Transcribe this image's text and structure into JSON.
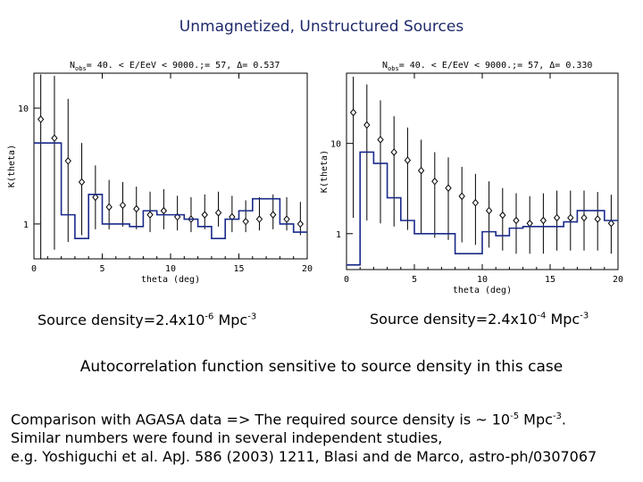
{
  "slide": {
    "title": "Unmagnetized, Unstructured Sources",
    "caption_left": {
      "pre": "Source density=2.4x10",
      "exp1": "-6",
      "mid": " Mpc",
      "exp2": "-3"
    },
    "caption_right": {
      "pre": "Source density=2.4x10",
      "exp1": "-4",
      "mid": " Mpc",
      "exp2": "-3"
    },
    "statement": "Autocorrelation function sensitive to source density in this case",
    "comparison": {
      "line1_pre": "Comparison with AGASA data => The required source density is ~ 10",
      "line1_exp1": "-5",
      "line1_mid": " Mpc",
      "line1_exp2": "-3",
      "line1_post": ".",
      "line2": "Similar numbers were found in several independent studies,",
      "line3": "e.g. Yoshiguchi et al. ApJ. 586 (2003) 1211, Blasi and de Marco, astro-ph/0307067"
    }
  },
  "colors": {
    "title": "#1f2a6b",
    "hist": "#1a2a8a",
    "ink": "#000000"
  },
  "chart_data": [
    {
      "type": "scatter",
      "title_pre": "N",
      "title_sub": "obs",
      "title_post": "= 40. < E/EeV < 9000.;= 57, Δ= 0.537",
      "xlabel": "theta (deg)",
      "ylabel": "K(theta)",
      "xlim": [
        0,
        20
      ],
      "ylim": [
        0.5,
        20
      ],
      "yscale": "log",
      "xticks": [
        0,
        5,
        10,
        15,
        20
      ],
      "yticks": [
        {
          "v": 1,
          "label": "1"
        },
        {
          "v": 10,
          "label": "10"
        }
      ],
      "grid": false,
      "series": [
        {
          "kind": "points_with_errors",
          "x": [
            0.5,
            1.5,
            2.5,
            3.5,
            4.5,
            5.5,
            6.5,
            7.5,
            8.5,
            9.5,
            10.5,
            11.5,
            12.5,
            13.5,
            14.5,
            15.5,
            16.5,
            17.5,
            18.5,
            19.5
          ],
          "y": [
            8.0,
            5.5,
            3.5,
            2.3,
            1.7,
            1.4,
            1.45,
            1.35,
            1.2,
            1.3,
            1.15,
            1.1,
            1.2,
            1.25,
            1.15,
            1.05,
            1.1,
            1.2,
            1.1,
            1.0
          ],
          "ylow": [
            0.5,
            0.6,
            0.7,
            0.8,
            0.9,
            0.9,
            0.95,
            0.9,
            0.85,
            0.9,
            0.88,
            0.85,
            0.9,
            0.95,
            0.85,
            0.85,
            0.88,
            0.9,
            0.88,
            0.8
          ],
          "yhigh": [
            19.5,
            19,
            12,
            5,
            3.2,
            2.4,
            2.3,
            2.1,
            1.9,
            2.0,
            1.75,
            1.7,
            1.8,
            1.9,
            1.75,
            1.6,
            1.7,
            1.8,
            1.7,
            1.55
          ]
        },
        {
          "kind": "step",
          "x": [
            0.5,
            1.5,
            2.5,
            3.5,
            4.5,
            5.5,
            6.5,
            7.5,
            8.5,
            9.5,
            10.5,
            11.5,
            12.5,
            13.5,
            14.5,
            15.5,
            16.5,
            17.5,
            18.5,
            19.5
          ],
          "y": [
            5.0,
            5.0,
            1.2,
            0.75,
            1.8,
            1.0,
            1.0,
            0.95,
            1.3,
            1.2,
            1.2,
            1.1,
            0.95,
            0.75,
            1.1,
            1.3,
            1.65,
            1.65,
            1.0,
            0.85
          ]
        }
      ]
    },
    {
      "type": "scatter",
      "title_pre": "N",
      "title_sub": "obs",
      "title_post": "= 40. < E/EeV < 9000.;= 57, Δ= 0.330",
      "xlabel": "theta (deg)",
      "ylabel": "K(theta)",
      "xlim": [
        0,
        20
      ],
      "ylim": [
        0.4,
        60
      ],
      "yscale": "log",
      "xticks": [
        0,
        5,
        10,
        15,
        20
      ],
      "yticks": [
        {
          "v": 1,
          "label": "1"
        },
        {
          "v": 10,
          "label": "10"
        }
      ],
      "grid": false,
      "series": [
        {
          "kind": "points_with_errors",
          "x": [
            0.5,
            1.5,
            2.5,
            3.5,
            4.5,
            5.5,
            6.5,
            7.5,
            8.5,
            9.5,
            10.5,
            11.5,
            12.5,
            13.5,
            14.5,
            15.5,
            16.5,
            17.5,
            18.5,
            19.5
          ],
          "y": [
            22,
            16,
            11,
            8,
            6.5,
            5.0,
            3.8,
            3.2,
            2.6,
            2.2,
            1.8,
            1.6,
            1.4,
            1.3,
            1.4,
            1.5,
            1.5,
            1.5,
            1.45,
            1.3
          ],
          "ylow": [
            1.5,
            1.4,
            1.3,
            1.2,
            1.1,
            1.0,
            0.9,
            0.85,
            0.8,
            0.75,
            0.7,
            0.65,
            0.6,
            0.6,
            0.6,
            0.65,
            0.65,
            0.65,
            0.65,
            0.6
          ],
          "yhigh": [
            55,
            45,
            30,
            20,
            15,
            11,
            8,
            7,
            5.5,
            4.6,
            3.8,
            3.2,
            2.8,
            2.6,
            2.8,
            3.0,
            3.0,
            3.0,
            2.9,
            2.7
          ]
        },
        {
          "kind": "step",
          "x": [
            0.5,
            1.5,
            2.5,
            3.5,
            4.5,
            5.5,
            6.5,
            7.5,
            8.5,
            9.5,
            10.5,
            11.5,
            12.5,
            13.5,
            14.5,
            15.5,
            16.5,
            17.5,
            18.5,
            19.5
          ],
          "y": [
            0.45,
            8,
            6,
            2.5,
            1.4,
            1.0,
            1.0,
            1.0,
            0.6,
            0.6,
            1.05,
            0.95,
            1.15,
            1.2,
            1.2,
            1.2,
            1.35,
            1.8,
            1.8,
            1.4
          ]
        }
      ]
    }
  ]
}
